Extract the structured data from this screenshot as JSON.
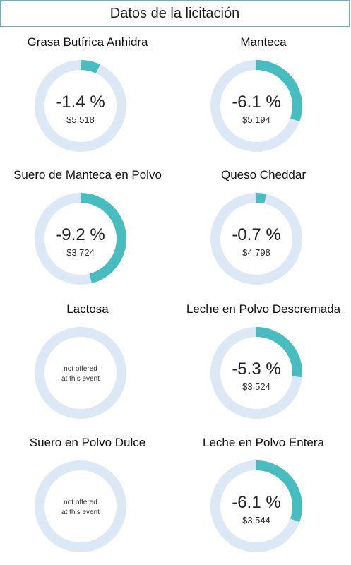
{
  "header": {
    "title": "Datos de la licitación"
  },
  "colors": {
    "track": "#dde8f6",
    "fill": "#49bcc0",
    "border": "#5fb7c4"
  },
  "chart_data": {
    "type": "donut-grid",
    "title": "Datos de la licitación",
    "max_abs_change_pct": 20,
    "items": [
      {
        "name": "Grasa Butírica Anhidra",
        "change_pct": -1.4,
        "change_label": "-1.4 %",
        "price": "$5,518",
        "offered": true
      },
      {
        "name": "Manteca",
        "change_pct": -6.1,
        "change_label": "-6.1 %",
        "price": "$5,194",
        "offered": true
      },
      {
        "name": "Suero de Manteca en Polvo",
        "change_pct": -9.2,
        "change_label": "-9.2 %",
        "price": "$3,724",
        "offered": true
      },
      {
        "name": "Queso Cheddar",
        "change_pct": -0.7,
        "change_label": "-0.7 %",
        "price": "$4,798",
        "offered": true
      },
      {
        "name": "Lactosa",
        "change_pct": null,
        "change_label": "",
        "price": "",
        "offered": false,
        "not_offered_text": [
          "not offered",
          "at this event"
        ]
      },
      {
        "name": "Leche en Polvo Descremada",
        "change_pct": -5.3,
        "change_label": "-5.3 %",
        "price": "$3,524",
        "offered": true
      },
      {
        "name": "Suero en Polvo Dulce",
        "change_pct": null,
        "change_label": "",
        "price": "",
        "offered": false,
        "not_offered_text": [
          "not offered",
          "at this event"
        ]
      },
      {
        "name": "Leche en Polvo Entera",
        "change_pct": -6.1,
        "change_label": "-6.1 %",
        "price": "$3,544",
        "offered": true
      }
    ]
  }
}
